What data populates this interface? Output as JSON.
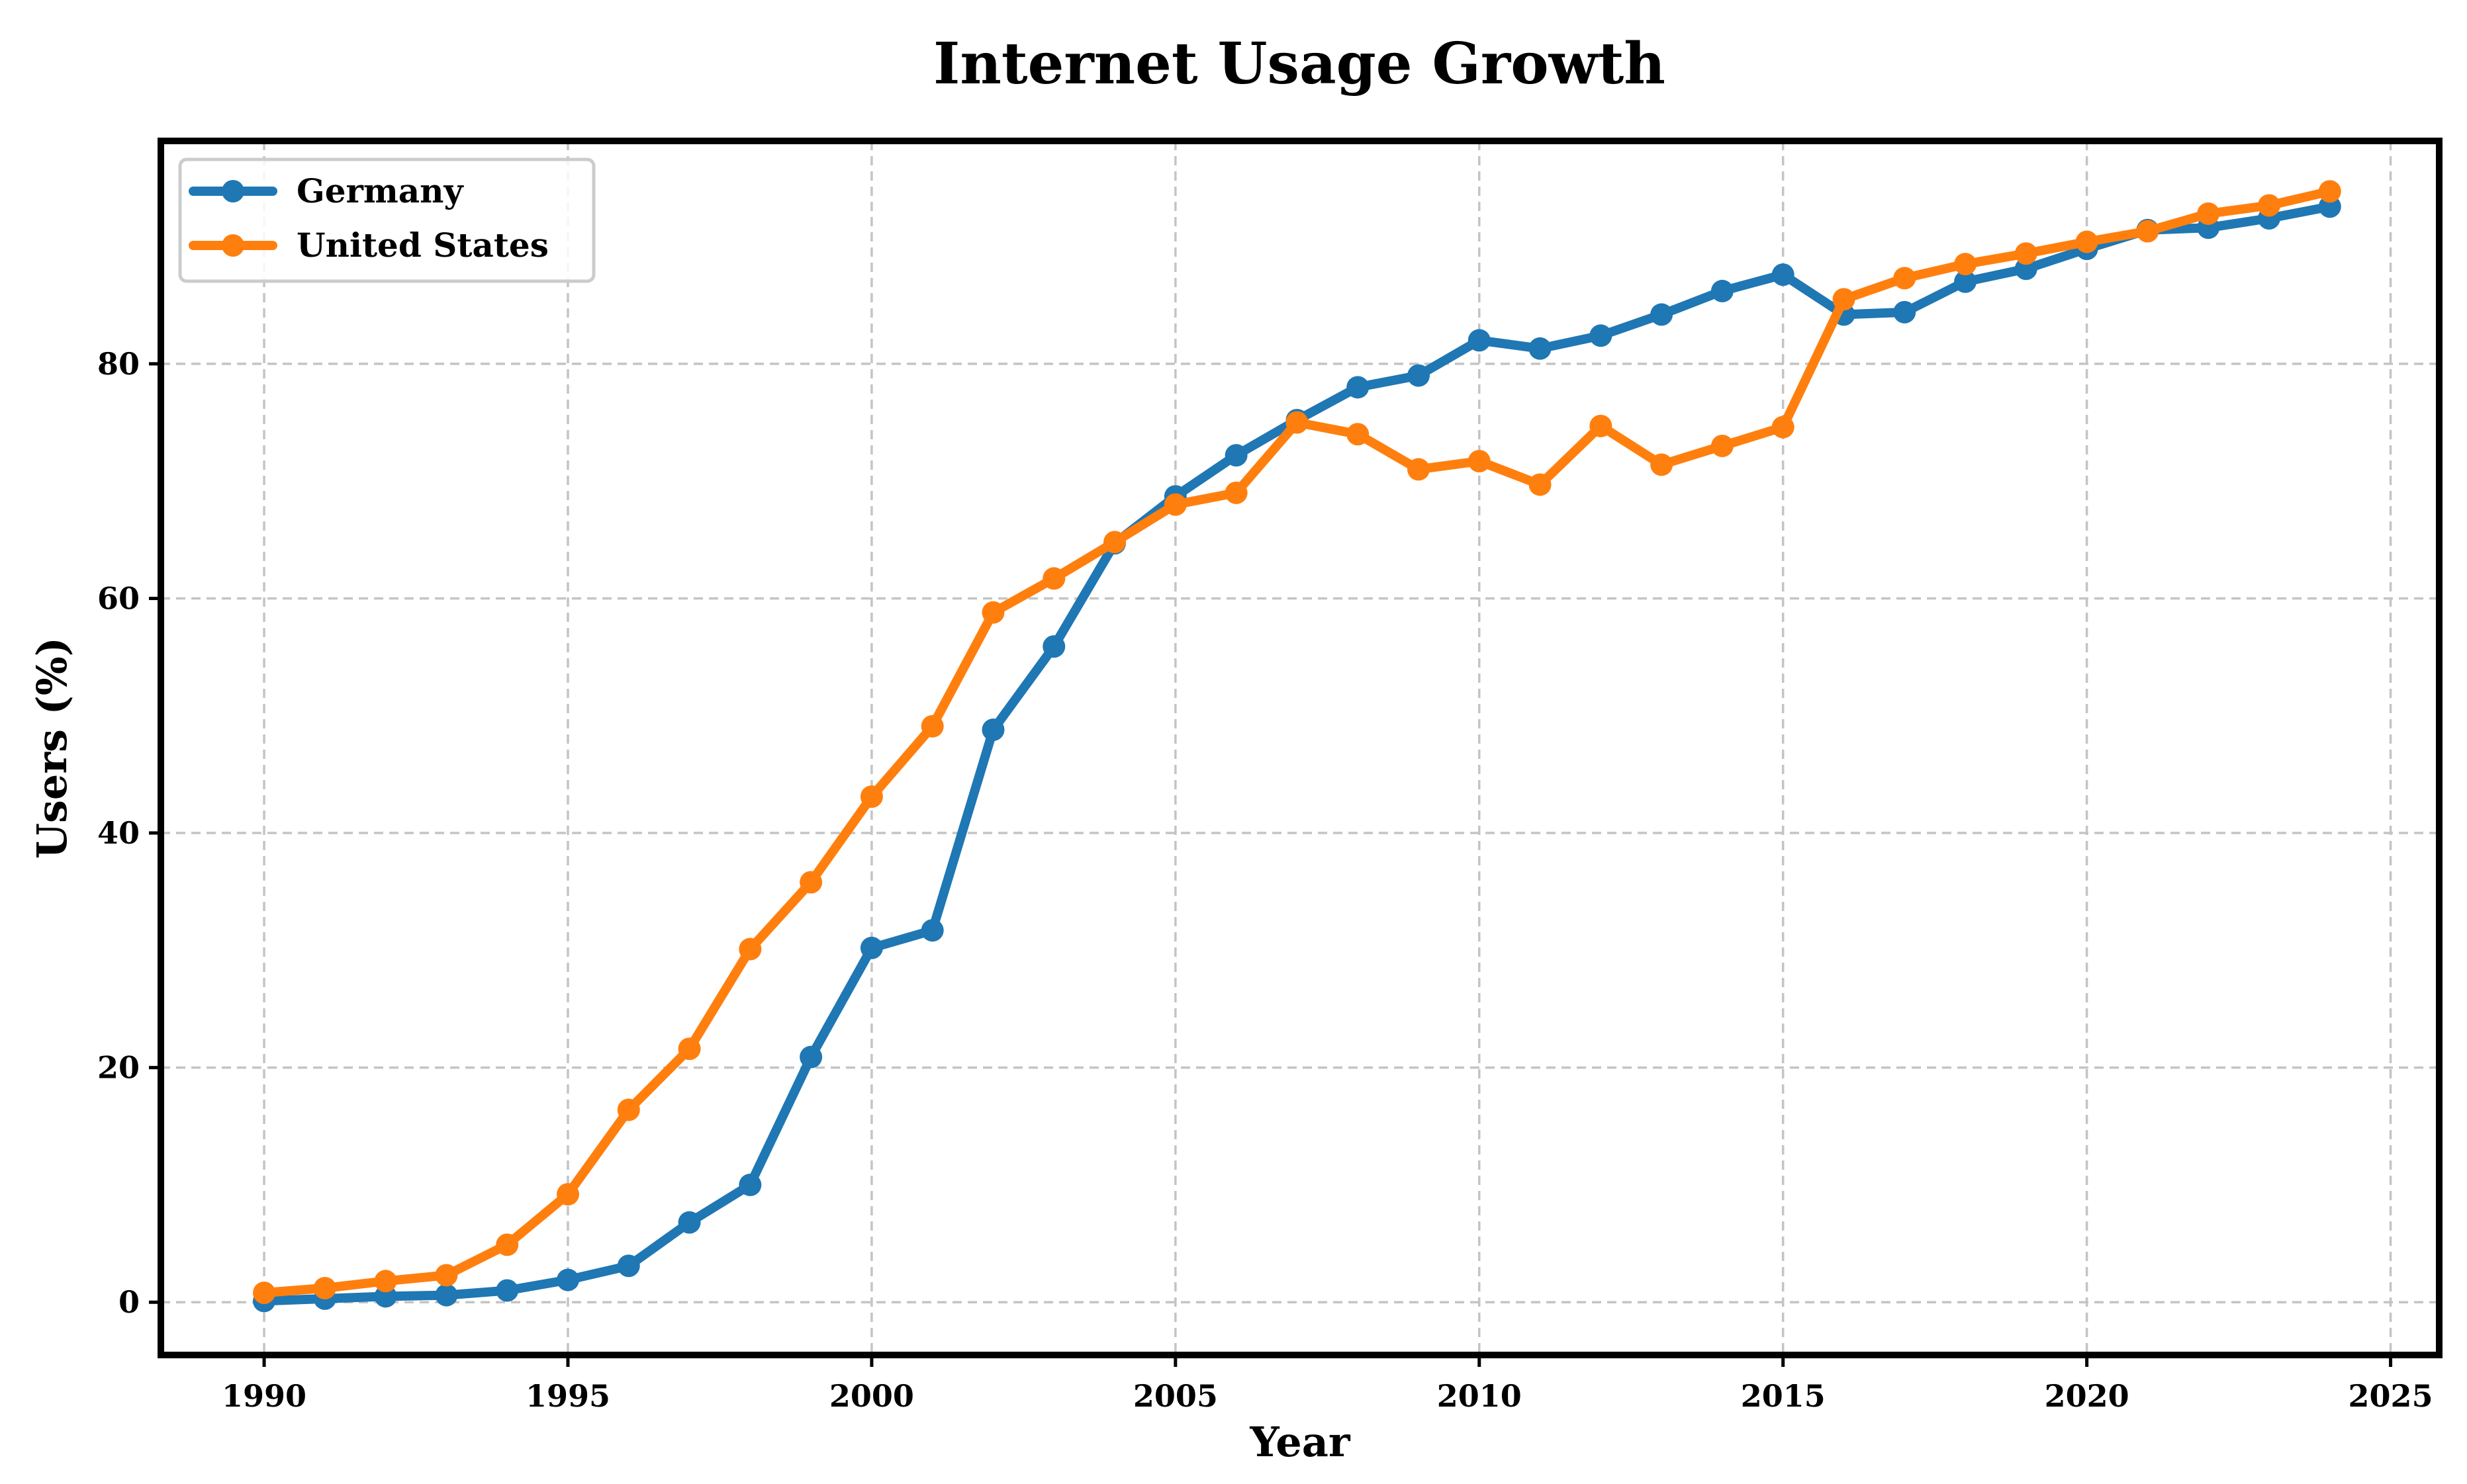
{
  "chart_data": {
    "type": "line",
    "title": "Internet Usage Growth",
    "xlabel": "Year",
    "ylabel": "Users (%)",
    "xlim": [
      1988.3,
      2025.8
    ],
    "ylim": [
      -4.5,
      99
    ],
    "xticks": [
      1990,
      1995,
      2000,
      2005,
      2010,
      2015,
      2020,
      2025
    ],
    "yticks": [
      0,
      20,
      40,
      60,
      80
    ],
    "grid": true,
    "legend_position": "top-left",
    "x": [
      1990,
      1991,
      1992,
      1993,
      1994,
      1995,
      1996,
      1997,
      1998,
      1999,
      2000,
      2001,
      2002,
      2003,
      2004,
      2005,
      2006,
      2007,
      2008,
      2009,
      2010,
      2011,
      2012,
      2013,
      2014,
      2015,
      2016,
      2017,
      2018,
      2019,
      2020,
      2021,
      2022,
      2023,
      2024
    ],
    "series": [
      {
        "name": "Germany",
        "color": "#1f77b4",
        "values": [
          0.1,
          0.3,
          0.5,
          0.6,
          1.0,
          1.9,
          3.1,
          6.8,
          10.0,
          20.9,
          30.2,
          31.7,
          48.8,
          55.9,
          64.7,
          68.7,
          72.2,
          75.2,
          78.0,
          79.0,
          82.0,
          81.3,
          82.4,
          84.2,
          86.2,
          87.6,
          84.2,
          84.4,
          87.0,
          88.1,
          89.8,
          91.4,
          91.6,
          92.4,
          93.4
        ]
      },
      {
        "name": "United States",
        "color": "#ff7f0e",
        "values": [
          0.8,
          1.2,
          1.8,
          2.3,
          4.9,
          9.2,
          16.4,
          21.6,
          30.1,
          35.8,
          43.1,
          49.1,
          58.8,
          61.7,
          64.8,
          68.0,
          69.0,
          75.0,
          74.0,
          71.0,
          71.7,
          69.7,
          74.7,
          71.4,
          73.0,
          74.6,
          85.5,
          87.3,
          88.5,
          89.4,
          90.4,
          91.3,
          92.8,
          93.5,
          94.7
        ]
      }
    ]
  }
}
